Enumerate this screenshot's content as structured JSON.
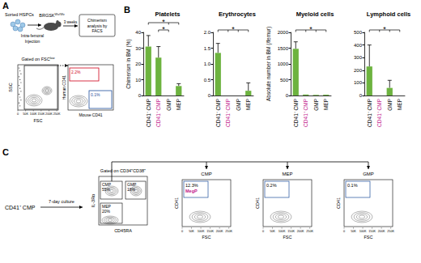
{
  "panel_a": {
    "label": "A",
    "cells_label": "Sorted HSPCs",
    "mouse": {
      "base": "BRGSK",
      "sup": "Wv/Wv"
    },
    "injection": [
      "Intra-femoral",
      "Injection"
    ],
    "wait": "3 weeks",
    "analysis": [
      "Chimerism",
      "analysis by",
      "FACS"
    ],
    "gating": {
      "base": "Gated on FSC",
      "sup": "low"
    },
    "left_plot": {
      "y_label": "SSC",
      "x_label": "FSC",
      "x_ticks": [
        "0",
        "50K",
        "100K",
        "150K",
        "200K",
        "250K"
      ]
    },
    "right_plot": {
      "y_label": "Human CD41",
      "x_label": "Mouse CD41",
      "upper_gate": {
        "label": "2.2%",
        "color": "#d0021b"
      },
      "lower_gate": {
        "label": "0.1%",
        "color": "#1f4e9c"
      }
    }
  },
  "panel_b": {
    "label": "B"
  },
  "chart_data": [
    {
      "type": "bar",
      "title": "Platelets",
      "y_label": "Chimerism in BM (%)",
      "categories": [
        "CD41⁻ CMP",
        "CD41⁺ CMP",
        "GMP",
        "MEP"
      ],
      "category_colors": [
        "#000000",
        "#c2178c",
        "#000000",
        "#000000"
      ],
      "values": [
        31,
        24,
        0,
        6
      ],
      "errors": [
        7,
        7,
        0,
        1.5
      ],
      "color": "#6db33f",
      "ylim": [
        0,
        40
      ],
      "yticks": [
        0,
        10,
        20,
        30,
        40
      ],
      "grid": false,
      "significance": [
        {
          "label": "*",
          "from": 1,
          "to": [
            2
          ]
        },
        {
          "label": "*",
          "from": 0,
          "to": [
            2,
            3
          ]
        }
      ]
    },
    {
      "type": "bar",
      "title": "Erythrocytes",
      "categories": [
        "CD41⁻ CMP",
        "CD41⁺ CMP",
        "GMP",
        "MEP"
      ],
      "category_colors": [
        "#000000",
        "#c2178c",
        "#000000",
        "#000000"
      ],
      "values": [
        1.35,
        0,
        0,
        0.15
      ],
      "errors": [
        0.3,
        0,
        0,
        0.25
      ],
      "color": "#6db33f",
      "ylim": [
        0,
        2
      ],
      "yticks": [
        0,
        0.5,
        {
          "value": 1,
          "label": "1.0"
        },
        1.5,
        {
          "value": 2,
          "label": "2.0"
        }
      ],
      "grid": false,
      "significance": [
        {
          "label": "*",
          "from": 0,
          "to": [
            1,
            2,
            3
          ]
        }
      ]
    },
    {
      "type": "bar",
      "title": "Myeloid cells",
      "y_label": "Absolute number in BM (/femur)",
      "categories": [
        "CD41⁻ CMP",
        "CD41⁺ CMP",
        "GMP",
        "MEP"
      ],
      "category_colors": [
        "#000000",
        "#c2178c",
        "#000000",
        "#000000"
      ],
      "values": [
        1480,
        30,
        20,
        25
      ],
      "errors": [
        220,
        0,
        0,
        0
      ],
      "color": "#6db33f",
      "ylim": [
        0,
        2000
      ],
      "yticks": [
        0,
        500,
        1000,
        1500,
        2000
      ],
      "grid": false,
      "significance": [
        {
          "label": "*",
          "from": 0,
          "to": [
            1,
            2,
            3
          ]
        }
      ]
    },
    {
      "type": "bar",
      "title": "Lymphoid cells",
      "categories": [
        "CD41⁻ CMP",
        "CD41⁺ CMP",
        "GMP",
        "MEP"
      ],
      "category_colors": [
        "#000000",
        "#c2178c",
        "#000000",
        "#000000"
      ],
      "values": [
        230,
        0,
        60,
        0
      ],
      "errors": [
        170,
        0,
        60,
        0
      ],
      "color": "#6db33f",
      "ylim": [
        0,
        500
      ],
      "yticks": [
        0,
        100,
        200,
        300,
        400,
        500
      ],
      "grid": false,
      "significance": [
        {
          "label": "*",
          "from": 0,
          "to": [
            1,
            2,
            3
          ]
        }
      ]
    }
  ],
  "panel_c": {
    "label": "C",
    "source": "CD41⁺ CMP",
    "step": "7-day culture",
    "sort_plot": {
      "title": "Gated on CD34⁺CD38⁺",
      "y_label": "IL-3Rα",
      "x_label": "CD45RA",
      "gates": [
        {
          "name": "CMP",
          "label": "55%"
        },
        {
          "name": "GMP",
          "label": "18%"
        },
        {
          "name": "MEP",
          "label": "20%"
        }
      ]
    },
    "plots": [
      {
        "title": "CMP",
        "label": "12.3%",
        "gate_name": "MegP",
        "y_label": "CD41",
        "x_label": "FSC"
      },
      {
        "title": "MEP",
        "label": "0.2%",
        "y_label": "CD41",
        "x_label": "FSC"
      },
      {
        "title": "GMP",
        "label": "0.1%",
        "y_label": "CD41",
        "x_label": "FSC"
      }
    ],
    "x_ticks": [
      "0",
      "50K",
      "100K",
      "150K",
      "200K",
      "250K"
    ],
    "highlight_color": "#c2178c"
  }
}
